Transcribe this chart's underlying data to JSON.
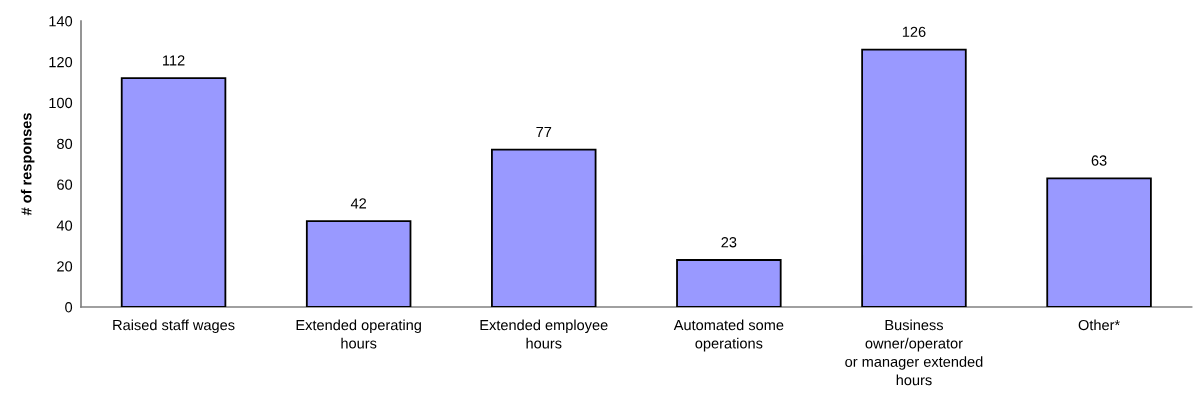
{
  "chart_data": {
    "type": "bar",
    "ylabel": "# of responses",
    "categories": [
      "Raised staff wages",
      "Extended operating\nhours",
      "Extended employee\nhours",
      "Automated some\noperations",
      "Business\nowner/operator\nor manager extended\nhours",
      "Other*"
    ],
    "values": [
      112,
      42,
      77,
      23,
      126,
      63
    ],
    "color": "#9999ff",
    "ylim": [
      0,
      140
    ],
    "yticks": [
      0,
      20,
      40,
      60,
      80,
      100,
      120,
      140
    ],
    "data_labels": true,
    "grid": false,
    "legend": false
  }
}
